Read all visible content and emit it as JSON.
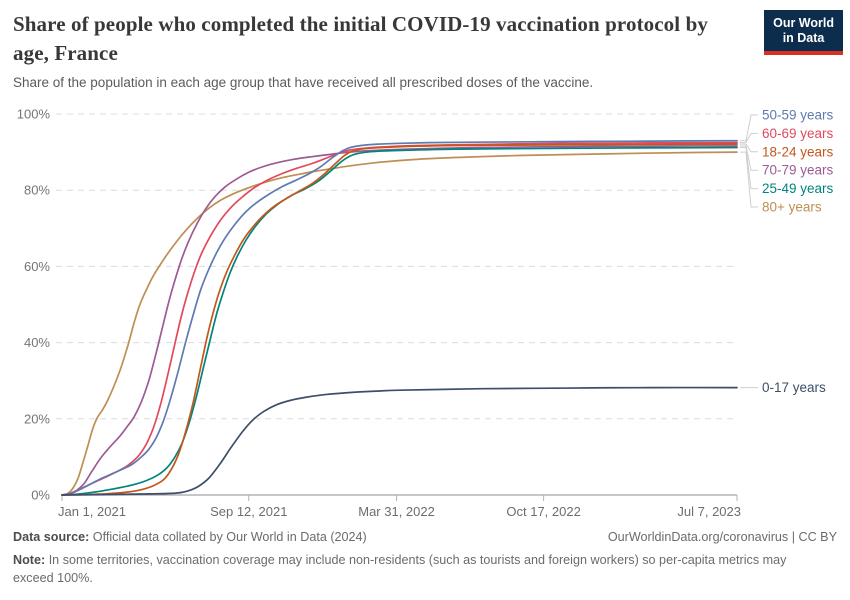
{
  "header": {
    "title": "Share of people who completed the initial COVID-19 vaccination protocol by age, France",
    "subtitle": "Share of the population in each age group that have received all prescribed doses of the vaccine.",
    "logo": {
      "line1": "Our World",
      "line2": "in Data",
      "bg_color": "#0d2d4e",
      "bar_color": "#d93025"
    }
  },
  "chart_data": {
    "type": "line",
    "title": "Share of people who completed the initial COVID-19 vaccination protocol by age, France",
    "xlabel": "",
    "ylabel": "",
    "x_unit": "days since Jan 1, 2021",
    "x_range_days": [
      0,
      918
    ],
    "ylim": [
      0,
      100
    ],
    "grid": "dashed-horizontal",
    "legend_position": "right-of-line-ends",
    "x_ticks": [
      {
        "label": "Jan 1, 2021",
        "day": 0
      },
      {
        "label": "Sep 12, 2021",
        "day": 254
      },
      {
        "label": "Mar 31, 2022",
        "day": 455
      },
      {
        "label": "Oct 17, 2022",
        "day": 655
      },
      {
        "label": "Jul 7, 2023",
        "day": 918
      }
    ],
    "y_ticks": [
      {
        "label": "0%",
        "value": 0
      },
      {
        "label": "20%",
        "value": 20
      },
      {
        "label": "40%",
        "value": 40
      },
      {
        "label": "60%",
        "value": 60
      },
      {
        "label": "80%",
        "value": 80
      },
      {
        "label": "100%",
        "value": 100
      }
    ],
    "series": [
      {
        "label": "80+ years",
        "color": "#bf8e54",
        "legend_row": 5,
        "points": [
          [
            0,
            0
          ],
          [
            8,
            0.4
          ],
          [
            15,
            1.8
          ],
          [
            22,
            4.5
          ],
          [
            30,
            9.5
          ],
          [
            36,
            13.5
          ],
          [
            42,
            17.5
          ],
          [
            48,
            20.3
          ],
          [
            55,
            22.3
          ],
          [
            62,
            24.8
          ],
          [
            70,
            28.3
          ],
          [
            80,
            33.3
          ],
          [
            90,
            39.5
          ],
          [
            97,
            44.5
          ],
          [
            105,
            49.5
          ],
          [
            115,
            54
          ],
          [
            125,
            57.8
          ],
          [
            140,
            62.3
          ],
          [
            155,
            66.3
          ],
          [
            170,
            69.8
          ],
          [
            185,
            72.8
          ],
          [
            200,
            75.3
          ],
          [
            215,
            77.3
          ],
          [
            230,
            78.8
          ],
          [
            245,
            80
          ],
          [
            262,
            81.2
          ],
          [
            280,
            82.3
          ],
          [
            300,
            83.3
          ],
          [
            320,
            84.1
          ],
          [
            342,
            84.9
          ],
          [
            365,
            85.6
          ],
          [
            392,
            86.4
          ],
          [
            425,
            87.2
          ],
          [
            460,
            87.8
          ],
          [
            500,
            88.3
          ],
          [
            550,
            88.7
          ],
          [
            620,
            89.1
          ],
          [
            700,
            89.4
          ],
          [
            790,
            89.7
          ],
          [
            860,
            89.9
          ],
          [
            918,
            90
          ]
        ]
      },
      {
        "label": "70-79 years",
        "color": "#9c5b93",
        "legend_row": 3,
        "points": [
          [
            0,
            0
          ],
          [
            10,
            0.3
          ],
          [
            20,
            1.2
          ],
          [
            30,
            3
          ],
          [
            40,
            6
          ],
          [
            50,
            9
          ],
          [
            58,
            11
          ],
          [
            68,
            13.2
          ],
          [
            78,
            15.3
          ],
          [
            88,
            17.8
          ],
          [
            98,
            20.5
          ],
          [
            108,
            24.5
          ],
          [
            118,
            30
          ],
          [
            127,
            36.5
          ],
          [
            136,
            43.5
          ],
          [
            145,
            50.5
          ],
          [
            153,
            56
          ],
          [
            162,
            61.5
          ],
          [
            172,
            66.5
          ],
          [
            183,
            71
          ],
          [
            195,
            75
          ],
          [
            208,
            78.3
          ],
          [
            222,
            80.9
          ],
          [
            238,
            83
          ],
          [
            255,
            84.8
          ],
          [
            272,
            86.1
          ],
          [
            292,
            87.2
          ],
          [
            315,
            88.1
          ],
          [
            340,
            88.8
          ],
          [
            365,
            89.4
          ],
          [
            390,
            90
          ],
          [
            420,
            90.4
          ],
          [
            460,
            90.7
          ],
          [
            510,
            91
          ],
          [
            570,
            91.2
          ],
          [
            650,
            91.4
          ],
          [
            740,
            91.5
          ],
          [
            830,
            91.6
          ],
          [
            918,
            91.6
          ]
        ]
      },
      {
        "label": "60-69 years",
        "color": "#e2495c",
        "legend_row": 1,
        "points": [
          [
            0,
            0
          ],
          [
            12,
            0.5
          ],
          [
            25,
            1.6
          ],
          [
            40,
            3
          ],
          [
            55,
            4.3
          ],
          [
            70,
            5.7
          ],
          [
            85,
            7.2
          ],
          [
            95,
            8.6
          ],
          [
            105,
            10.5
          ],
          [
            115,
            13.5
          ],
          [
            125,
            18
          ],
          [
            135,
            24.5
          ],
          [
            145,
            32.5
          ],
          [
            155,
            41
          ],
          [
            163,
            47.5
          ],
          [
            171,
            53
          ],
          [
            180,
            58.5
          ],
          [
            190,
            63.5
          ],
          [
            202,
            68
          ],
          [
            215,
            72
          ],
          [
            230,
            75.5
          ],
          [
            245,
            78.2
          ],
          [
            262,
            80.7
          ],
          [
            280,
            82.7
          ],
          [
            300,
            84.4
          ],
          [
            320,
            85.8
          ],
          [
            340,
            87
          ],
          [
            358,
            88.3
          ],
          [
            375,
            89.6
          ],
          [
            390,
            90.5
          ],
          [
            410,
            91
          ],
          [
            440,
            91.4
          ],
          [
            480,
            91.7
          ],
          [
            530,
            91.9
          ],
          [
            600,
            92.1
          ],
          [
            680,
            92.3
          ],
          [
            770,
            92.4
          ],
          [
            918,
            92.5
          ]
        ]
      },
      {
        "label": "50-59 years",
        "color": "#5e7ab1",
        "legend_row": 0,
        "points": [
          [
            0,
            0
          ],
          [
            12,
            0.4
          ],
          [
            25,
            1.5
          ],
          [
            40,
            3
          ],
          [
            52,
            4.2
          ],
          [
            65,
            5.3
          ],
          [
            80,
            6.6
          ],
          [
            95,
            8
          ],
          [
            108,
            10
          ],
          [
            118,
            12
          ],
          [
            128,
            15
          ],
          [
            138,
            19.5
          ],
          [
            148,
            25.5
          ],
          [
            158,
            32.5
          ],
          [
            168,
            40
          ],
          [
            178,
            47
          ],
          [
            188,
            53.5
          ],
          [
            198,
            58.5
          ],
          [
            210,
            63.5
          ],
          [
            222,
            67.5
          ],
          [
            235,
            71
          ],
          [
            250,
            74.3
          ],
          [
            265,
            76.8
          ],
          [
            282,
            79
          ],
          [
            300,
            81
          ],
          [
            318,
            82.6
          ],
          [
            336,
            84.3
          ],
          [
            352,
            86.2
          ],
          [
            368,
            88.6
          ],
          [
            382,
            90.4
          ],
          [
            394,
            91.3
          ],
          [
            410,
            91.8
          ],
          [
            430,
            92.1
          ],
          [
            460,
            92.3
          ],
          [
            500,
            92.5
          ],
          [
            560,
            92.6
          ],
          [
            640,
            92.7
          ],
          [
            720,
            92.8
          ],
          [
            800,
            92.9
          ],
          [
            918,
            93
          ]
        ]
      },
      {
        "label": "25-49 years",
        "color": "#00847d",
        "legend_row": 4,
        "points": [
          [
            0,
            0
          ],
          [
            20,
            0.2
          ],
          [
            45,
            0.8
          ],
          [
            70,
            1.6
          ],
          [
            95,
            2.6
          ],
          [
            115,
            3.8
          ],
          [
            130,
            5.2
          ],
          [
            143,
            7.2
          ],
          [
            153,
            9.8
          ],
          [
            163,
            13.5
          ],
          [
            173,
            19
          ],
          [
            183,
            26
          ],
          [
            193,
            34
          ],
          [
            203,
            42
          ],
          [
            211,
            48
          ],
          [
            219,
            53
          ],
          [
            228,
            58
          ],
          [
            238,
            62.5
          ],
          [
            250,
            66.8
          ],
          [
            263,
            70.5
          ],
          [
            278,
            73.8
          ],
          [
            294,
            76.4
          ],
          [
            312,
            78.6
          ],
          [
            330,
            80.3
          ],
          [
            348,
            82.3
          ],
          [
            364,
            84.8
          ],
          [
            378,
            87.2
          ],
          [
            390,
            88.8
          ],
          [
            402,
            89.6
          ],
          [
            420,
            90.1
          ],
          [
            450,
            90.4
          ],
          [
            490,
            90.6
          ],
          [
            540,
            90.8
          ],
          [
            610,
            90.9
          ],
          [
            690,
            91
          ],
          [
            780,
            91.1
          ],
          [
            918,
            91.2
          ]
        ]
      },
      {
        "label": "18-24 years",
        "color": "#c4571d",
        "legend_row": 2,
        "points": [
          [
            0,
            0
          ],
          [
            30,
            0.1
          ],
          [
            60,
            0.3
          ],
          [
            90,
            0.8
          ],
          [
            110,
            1.5
          ],
          [
            125,
            2.5
          ],
          [
            138,
            4
          ],
          [
            148,
            6.5
          ],
          [
            158,
            10.5
          ],
          [
            168,
            16.5
          ],
          [
            178,
            24
          ],
          [
            188,
            33
          ],
          [
            198,
            42
          ],
          [
            208,
            49.5
          ],
          [
            216,
            54.5
          ],
          [
            225,
            59
          ],
          [
            235,
            63
          ],
          [
            246,
            66.8
          ],
          [
            258,
            70
          ],
          [
            272,
            73
          ],
          [
            288,
            75.7
          ],
          [
            305,
            77.8
          ],
          [
            322,
            79.7
          ],
          [
            340,
            81.7
          ],
          [
            357,
            84.3
          ],
          [
            372,
            87
          ],
          [
            385,
            89.2
          ],
          [
            396,
            90.3
          ],
          [
            412,
            90.9
          ],
          [
            435,
            91.2
          ],
          [
            470,
            91.5
          ],
          [
            520,
            91.7
          ],
          [
            590,
            91.8
          ],
          [
            670,
            91.9
          ],
          [
            760,
            92
          ],
          [
            918,
            92.1
          ]
        ]
      },
      {
        "label": "0-17 years",
        "color": "#3d4e6b",
        "legend_row": -1,
        "points": [
          [
            0,
            0
          ],
          [
            60,
            0.1
          ],
          [
            120,
            0.3
          ],
          [
            155,
            0.5
          ],
          [
            170,
            1
          ],
          [
            185,
            2.2
          ],
          [
            200,
            4.5
          ],
          [
            215,
            8.2
          ],
          [
            230,
            12.5
          ],
          [
            245,
            16.5
          ],
          [
            260,
            19.8
          ],
          [
            275,
            22
          ],
          [
            292,
            23.7
          ],
          [
            310,
            24.8
          ],
          [
            330,
            25.6
          ],
          [
            355,
            26.3
          ],
          [
            385,
            26.8
          ],
          [
            420,
            27.2
          ],
          [
            460,
            27.5
          ],
          [
            510,
            27.7
          ],
          [
            570,
            27.9
          ],
          [
            640,
            28
          ],
          [
            720,
            28.1
          ],
          [
            800,
            28.2
          ],
          [
            918,
            28.2
          ]
        ]
      }
    ]
  },
  "footer": {
    "source_label": "Data source:",
    "source_text": "Official data collated by Our World in Data (2024)",
    "credit": "OurWorldinData.org/coronavirus | CC BY",
    "note_label": "Note:",
    "note_text": "In some territories, vaccination coverage may include non-residents (such as tourists and foreign workers) so per-capita metrics may exceed 100%."
  }
}
